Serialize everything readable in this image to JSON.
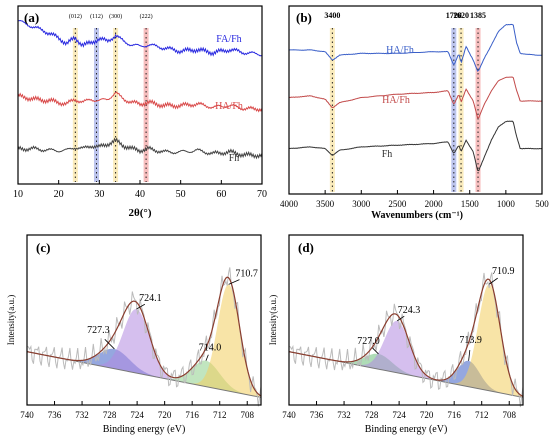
{
  "chart_data": [
    {
      "panel": "(a)",
      "type": "line",
      "xlabel": "2θ(°)",
      "ylabel": "",
      "xlim": [
        10,
        70
      ],
      "xticks": [
        10,
        20,
        30,
        40,
        50,
        60,
        70
      ],
      "grid": false,
      "highlight_bands": [
        {
          "x": 24.1,
          "label": "(012)",
          "color": "#f5d36b"
        },
        {
          "x": 29.3,
          "label": "(112)",
          "color": "#6d7fd9"
        },
        {
          "x": 34.0,
          "label": "(300)",
          "color": "#f5d36b"
        },
        {
          "x": 41.5,
          "label": "(222)",
          "color": "#ee6e6e"
        }
      ],
      "series": [
        {
          "name": "FA/Fh",
          "color": "#2a2ae0",
          "x": [
            10,
            14,
            18,
            20,
            22,
            24,
            26,
            28,
            30,
            32,
            34,
            36,
            38,
            40,
            42,
            46,
            50,
            54,
            58,
            62,
            66,
            70
          ],
          "y": [
            0.97,
            0.93,
            0.89,
            0.86,
            0.83,
            0.86,
            0.82,
            0.83,
            0.86,
            0.84,
            0.88,
            0.84,
            0.82,
            0.81,
            0.82,
            0.8,
            0.78,
            0.79,
            0.77,
            0.79,
            0.77,
            0.76
          ]
        },
        {
          "name": "HA/Fh",
          "color": "#d94a4a",
          "x": [
            10,
            14,
            18,
            20,
            22,
            24,
            26,
            28,
            30,
            32,
            34,
            36,
            38,
            40,
            42,
            46,
            50,
            54,
            58,
            62,
            66,
            70
          ],
          "y": [
            0.5,
            0.48,
            0.47,
            0.46,
            0.45,
            0.48,
            0.46,
            0.48,
            0.47,
            0.48,
            0.52,
            0.48,
            0.46,
            0.45,
            0.46,
            0.44,
            0.44,
            0.45,
            0.43,
            0.44,
            0.42,
            0.42
          ]
        },
        {
          "name": "Fh",
          "color": "#444444",
          "x": [
            10,
            14,
            18,
            20,
            22,
            24,
            26,
            28,
            30,
            32,
            34,
            36,
            38,
            40,
            42,
            46,
            50,
            54,
            58,
            62,
            66,
            70
          ],
          "y": [
            0.17,
            0.17,
            0.16,
            0.16,
            0.16,
            0.18,
            0.17,
            0.19,
            0.18,
            0.2,
            0.22,
            0.19,
            0.17,
            0.16,
            0.17,
            0.15,
            0.15,
            0.16,
            0.14,
            0.15,
            0.13,
            0.13
          ]
        }
      ]
    },
    {
      "panel": "(b)",
      "type": "line",
      "xlabel": "Wavenumbers (cm⁻¹)",
      "ylabel": "",
      "xlim": [
        4000,
        500
      ],
      "xticks": [
        4000,
        3500,
        3000,
        2500,
        2000,
        1500,
        1000,
        500
      ],
      "grid": false,
      "highlight_bands": [
        {
          "x": 3400,
          "label": "3400",
          "color": "#f5d36b"
        },
        {
          "x": 1720,
          "label": "1720",
          "color": "#6d7fd9"
        },
        {
          "x": 1620,
          "label": "1620",
          "color": "#f5d36b"
        },
        {
          "x": 1385,
          "label": "1385",
          "color": "#ee6e6e"
        }
      ],
      "series": [
        {
          "name": "HA/Fh",
          "color": "#3a5fc8",
          "x": [
            4000,
            3700,
            3500,
            3400,
            3300,
            3000,
            2500,
            2000,
            1800,
            1720,
            1650,
            1620,
            1550,
            1450,
            1385,
            1300,
            1200,
            1100,
            1000,
            900,
            850,
            800,
            600,
            500
          ],
          "y": [
            0.8,
            0.8,
            0.79,
            0.74,
            0.77,
            0.78,
            0.78,
            0.79,
            0.79,
            0.71,
            0.78,
            0.72,
            0.82,
            0.74,
            0.67,
            0.75,
            0.83,
            0.91,
            0.95,
            0.95,
            0.84,
            0.78,
            0.77,
            0.77
          ]
        },
        {
          "name": "HA/Fh",
          "color": "#c24a4a",
          "x": [
            4000,
            3700,
            3500,
            3400,
            3300,
            3000,
            2500,
            2000,
            1800,
            1720,
            1650,
            1620,
            1550,
            1450,
            1385,
            1300,
            1200,
            1100,
            1000,
            900,
            850,
            800,
            600,
            500
          ],
          "y": [
            0.52,
            0.53,
            0.51,
            0.46,
            0.49,
            0.52,
            0.54,
            0.55,
            0.56,
            0.48,
            0.54,
            0.49,
            0.57,
            0.5,
            0.39,
            0.48,
            0.56,
            0.62,
            0.64,
            0.64,
            0.56,
            0.5,
            0.5,
            0.5
          ]
        },
        {
          "name": "Fh",
          "color": "#333333",
          "x": [
            4000,
            3700,
            3500,
            3400,
            3300,
            3000,
            2500,
            2000,
            1800,
            1720,
            1650,
            1620,
            1550,
            1450,
            1385,
            1300,
            1200,
            1100,
            1000,
            900,
            850,
            800,
            600,
            500
          ],
          "y": [
            0.22,
            0.23,
            0.22,
            0.18,
            0.21,
            0.23,
            0.24,
            0.25,
            0.26,
            0.19,
            0.24,
            0.2,
            0.27,
            0.2,
            0.08,
            0.17,
            0.27,
            0.35,
            0.38,
            0.38,
            0.29,
            0.22,
            0.22,
            0.22
          ]
        }
      ],
      "series_label_values": [
        "HA/Fh",
        "HA/Fh",
        "Fh"
      ]
    },
    {
      "panel": "(c)",
      "type": "area",
      "xlabel": "Binding energy (eV)",
      "ylabel": "Intensity(a.u.)",
      "xlim": [
        740,
        706
      ],
      "xticks": [
        740,
        736,
        732,
        728,
        724,
        720,
        716,
        712,
        708
      ],
      "grid": false,
      "baseline": {
        "x": [
          740,
          706
        ],
        "y": [
          0.3,
          0.0
        ]
      },
      "peaks": [
        {
          "center": 727.3,
          "label": "727.3",
          "height": 0.13,
          "width": 2.2,
          "fill": "#3e5fc4"
        },
        {
          "center": 724.1,
          "label": "724.1",
          "height": 0.42,
          "width": 1.9,
          "fill": "#b28ae0"
        },
        {
          "center": 714.0,
          "label": "714.0",
          "height": 0.17,
          "width": 2.0,
          "fill": "#8ed08b"
        },
        {
          "center": 710.7,
          "label": "710.7",
          "height": 0.7,
          "width": 1.6,
          "fill": "#f3cd5f"
        }
      ]
    },
    {
      "panel": "(d)",
      "type": "area",
      "xlabel": "Binding energy (eV)",
      "ylabel": "Intensity(a.u.)",
      "xlim": [
        740,
        706
      ],
      "xticks": [
        740,
        736,
        732,
        728,
        724,
        720,
        716,
        712,
        708
      ],
      "grid": false,
      "baseline": {
        "x": [
          740,
          706
        ],
        "y": [
          0.3,
          0.0
        ]
      },
      "peaks": [
        {
          "center": 727.0,
          "label": "727.0",
          "height": 0.1,
          "width": 2.0,
          "fill": "#6cbf7a"
        },
        {
          "center": 724.3,
          "label": "724.3",
          "height": 0.34,
          "width": 1.8,
          "fill": "#b28ae0"
        },
        {
          "center": 713.9,
          "label": "713.9",
          "height": 0.17,
          "width": 1.6,
          "fill": "#3e5fc4"
        },
        {
          "center": 710.9,
          "label": "710.9",
          "height": 0.7,
          "width": 1.6,
          "fill": "#f3cd5f"
        }
      ]
    }
  ]
}
